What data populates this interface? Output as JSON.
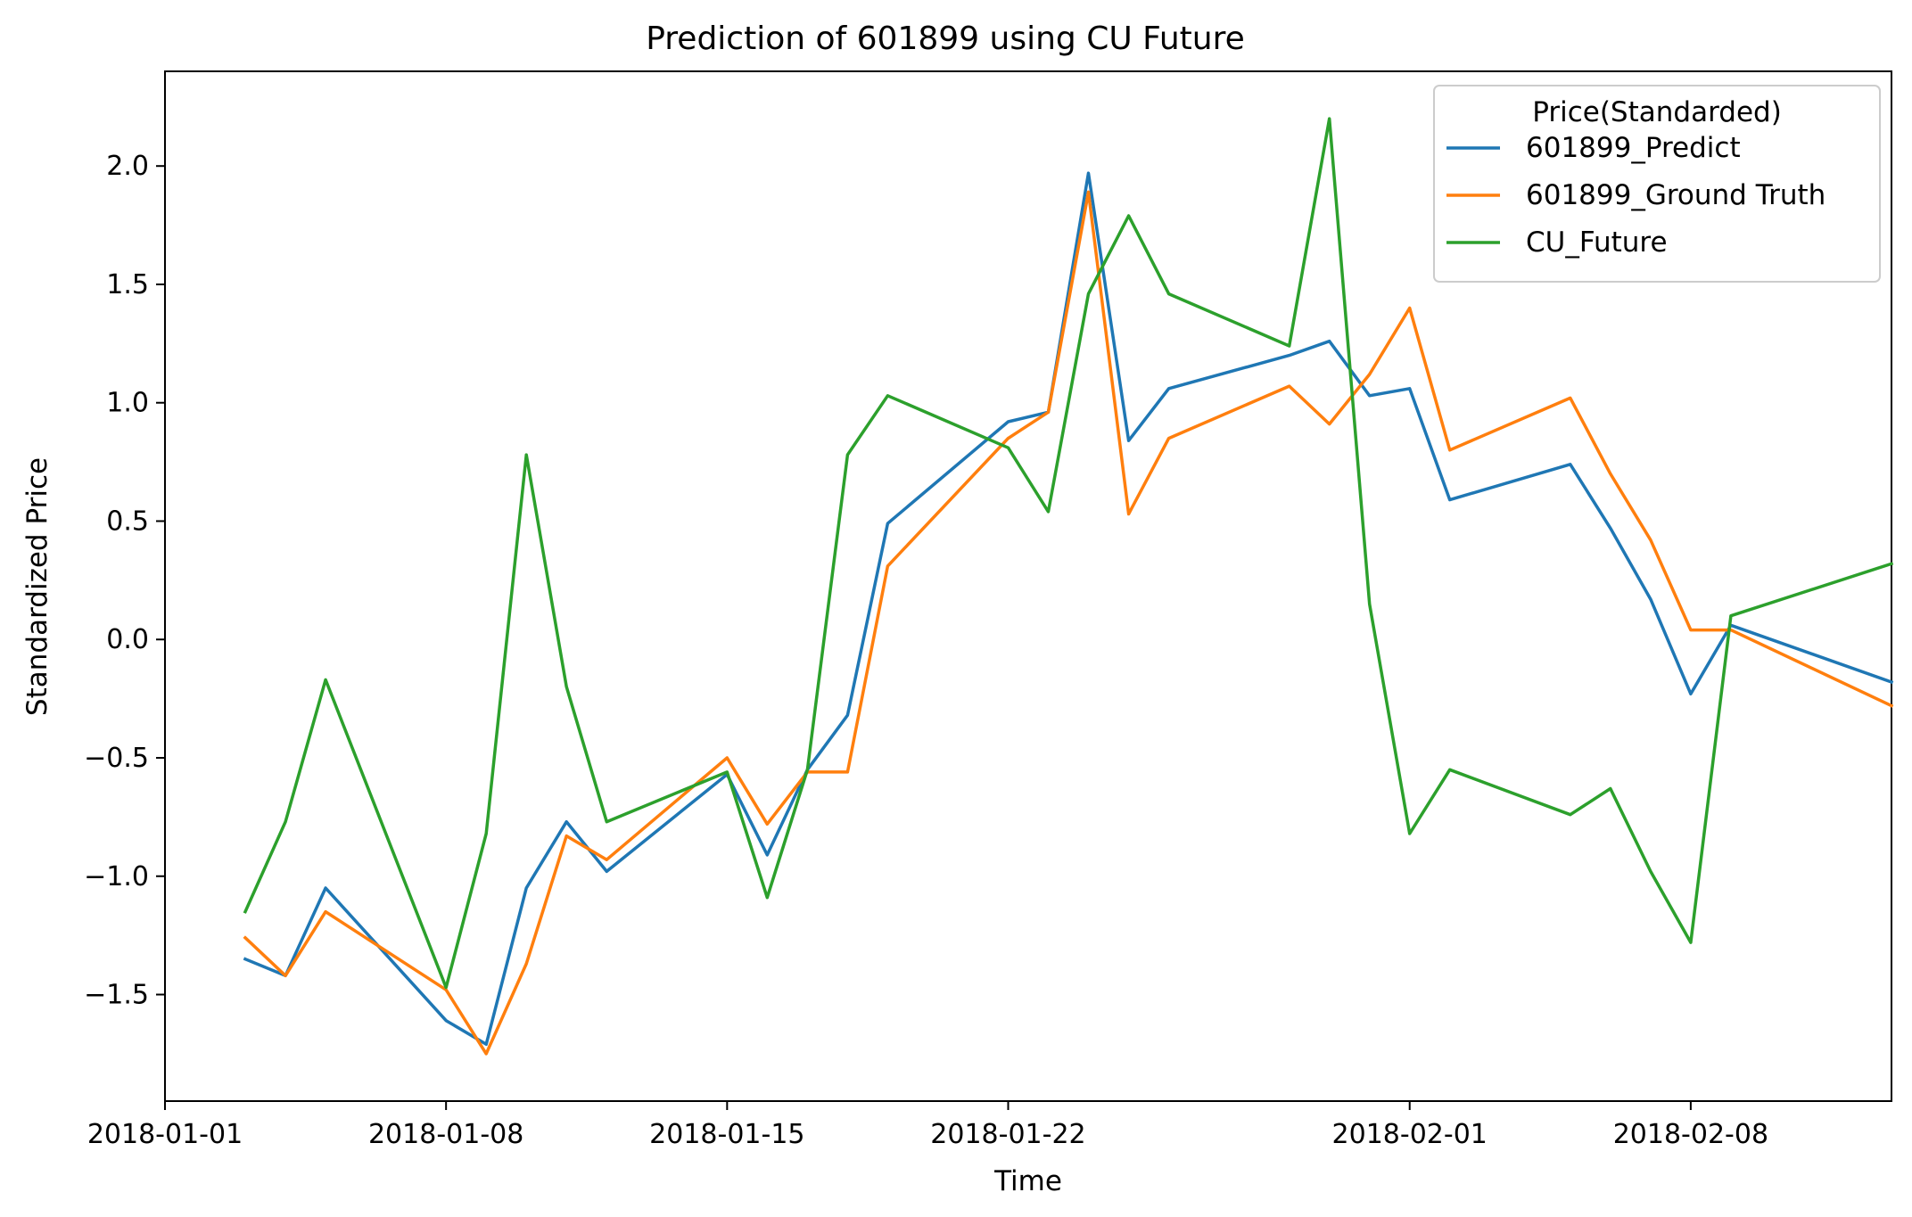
{
  "chart_data": {
    "type": "line",
    "title": "Prediction of 601899 using CU Future",
    "xlabel": "Time",
    "ylabel": "Standardized Price",
    "xlim": [
      "2018-01-01",
      "2018-02-13"
    ],
    "ylim": [
      -1.95,
      2.4
    ],
    "x_ticks": [
      "2018-01-01",
      "2018-01-08",
      "2018-01-15",
      "2018-01-22",
      "2018-02-01",
      "2018-02-08"
    ],
    "y_ticks": [
      {
        "value": -1.5,
        "label": "−1.5"
      },
      {
        "value": -1.0,
        "label": "−1.0"
      },
      {
        "value": -0.5,
        "label": "−0.5"
      },
      {
        "value": 0.0,
        "label": "0.0"
      },
      {
        "value": 0.5,
        "label": "0.5"
      },
      {
        "value": 1.0,
        "label": "1.0"
      },
      {
        "value": 1.5,
        "label": "1.5"
      },
      {
        "value": 2.0,
        "label": "2.0"
      }
    ],
    "grid": false,
    "legend": {
      "title": "Price(Standarded)",
      "position": "top-right"
    },
    "x": [
      "2018-01-03",
      "2018-01-04",
      "2018-01-05",
      "2018-01-08",
      "2018-01-09",
      "2018-01-10",
      "2018-01-11",
      "2018-01-12",
      "2018-01-15",
      "2018-01-16",
      "2018-01-17",
      "2018-01-18",
      "2018-01-19",
      "2018-01-22",
      "2018-01-23",
      "2018-01-24",
      "2018-01-25",
      "2018-01-26",
      "2018-01-29",
      "2018-01-30",
      "2018-01-31",
      "2018-02-01",
      "2018-02-02",
      "2018-02-05",
      "2018-02-06",
      "2018-02-07",
      "2018-02-08",
      "2018-02-09",
      "2018-02-13"
    ],
    "series": [
      {
        "name": "601899_Predict",
        "color": "#1f77b4",
        "values": [
          -1.35,
          -1.42,
          -1.05,
          -1.61,
          -1.71,
          -1.05,
          -0.77,
          -0.98,
          -0.57,
          -0.91,
          -0.55,
          -0.32,
          0.49,
          0.92,
          0.96,
          1.97,
          0.84,
          1.06,
          1.2,
          1.26,
          1.03,
          1.06,
          0.59,
          0.74,
          0.47,
          0.17,
          -0.23,
          0.06,
          -0.18
        ]
      },
      {
        "name": "601899_Ground Truth",
        "color": "#ff7f0e",
        "values": [
          -1.26,
          -1.42,
          -1.15,
          -1.48,
          -1.75,
          -1.37,
          -0.83,
          -0.93,
          -0.5,
          -0.78,
          -0.56,
          -0.56,
          0.31,
          0.85,
          0.96,
          1.89,
          0.53,
          0.85,
          1.07,
          0.91,
          1.12,
          1.4,
          0.8,
          1.02,
          0.7,
          0.42,
          0.04,
          0.04,
          -0.28
        ]
      },
      {
        "name": "CU_Future",
        "color": "#2ca02c",
        "values": [
          -1.15,
          -0.77,
          -0.17,
          -1.47,
          -0.82,
          0.78,
          -0.2,
          -0.77,
          -0.56,
          -1.09,
          -0.55,
          0.78,
          1.03,
          0.81,
          0.54,
          1.46,
          1.79,
          1.46,
          1.24,
          2.2,
          0.15,
          -0.82,
          -0.55,
          -0.74,
          -0.63,
          -0.98,
          -1.28,
          0.1,
          0.32
        ]
      }
    ]
  }
}
